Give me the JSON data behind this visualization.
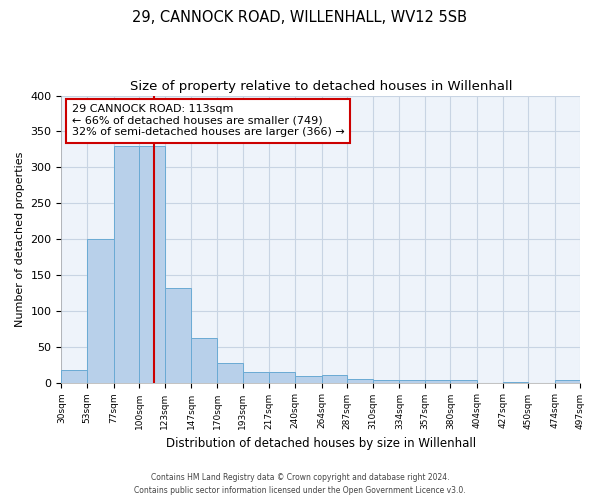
{
  "title": "29, CANNOCK ROAD, WILLENHALL, WV12 5SB",
  "subtitle": "Size of property relative to detached houses in Willenhall",
  "xlabel": "Distribution of detached houses by size in Willenhall",
  "ylabel": "Number of detached properties",
  "bin_edges": [
    30,
    53,
    77,
    100,
    123,
    147,
    170,
    193,
    217,
    240,
    264,
    287,
    310,
    334,
    357,
    380,
    404,
    427,
    450,
    474,
    497
  ],
  "bar_heights": [
    18,
    200,
    330,
    330,
    132,
    62,
    27,
    15,
    15,
    9,
    10,
    5,
    3,
    3,
    3,
    3,
    0,
    1,
    0,
    3
  ],
  "bar_color": "#b8d0ea",
  "bar_edgecolor": "#6aaad4",
  "property_line_x": 113,
  "property_line_color": "#cc0000",
  "annotation_title": "29 CANNOCK ROAD: 113sqm",
  "annotation_line1": "← 66% of detached houses are smaller (749)",
  "annotation_line2": "32% of semi-detached houses are larger (366) →",
  "annotation_box_edgecolor": "#cc0000",
  "ylim": [
    0,
    400
  ],
  "yticks": [
    0,
    50,
    100,
    150,
    200,
    250,
    300,
    350,
    400
  ],
  "tick_labels": [
    "30sqm",
    "53sqm",
    "77sqm",
    "100sqm",
    "123sqm",
    "147sqm",
    "170sqm",
    "193sqm",
    "217sqm",
    "240sqm",
    "264sqm",
    "287sqm",
    "310sqm",
    "334sqm",
    "357sqm",
    "380sqm",
    "404sqm",
    "427sqm",
    "450sqm",
    "474sqm",
    "497sqm"
  ],
  "footer1": "Contains HM Land Registry data © Crown copyright and database right 2024.",
  "footer2": "Contains public sector information licensed under the Open Government Licence v3.0.",
  "background_color": "#ffffff",
  "grid_color": "#c8d4e3",
  "title_fontsize": 10.5,
  "subtitle_fontsize": 9.5
}
